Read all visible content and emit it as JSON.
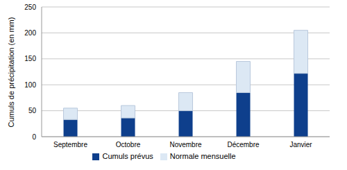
{
  "chart_data": {
    "type": "bar",
    "y_label": "Cumuls de précipitation (en mm)",
    "categories": [
      "Septembre",
      "Octobre",
      "Novembre",
      "Décembre",
      "Janvier"
    ],
    "series": [
      {
        "name": "Cumuls prévus",
        "color": "#0e3f8c",
        "values": [
          33,
          36,
          50,
          85,
          122
        ]
      },
      {
        "name": "Normale mensuelle",
        "color": "#dce8f4",
        "values": [
          22,
          24,
          35,
          60,
          83
        ]
      }
    ],
    "stacked": true,
    "ylim": [
      0,
      250
    ],
    "yticks": [
      0,
      50,
      100,
      150,
      200,
      250
    ],
    "grid": true,
    "legend": "bottom"
  }
}
